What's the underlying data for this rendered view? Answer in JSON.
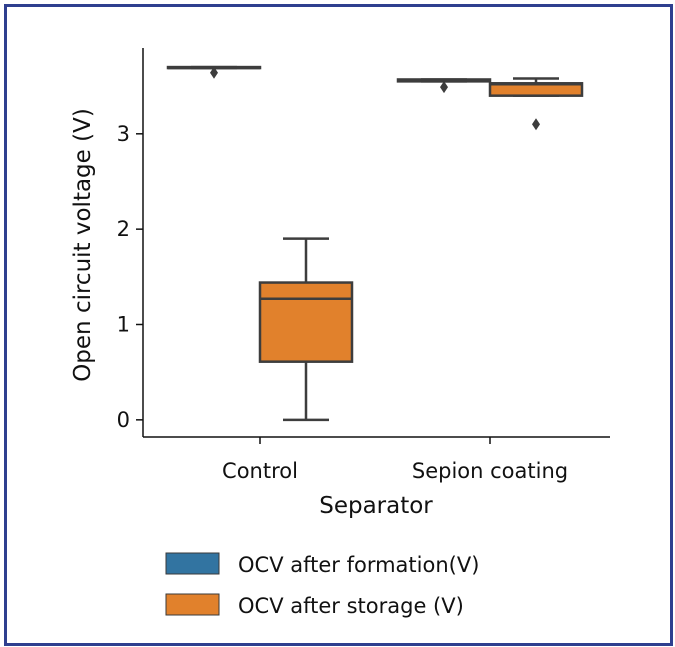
{
  "chart_data": {
    "type": "box",
    "title": "",
    "xlabel": "Separator",
    "ylabel": "Open circuit voltage (V)",
    "categories": [
      "Control",
      "Sepion coating"
    ],
    "ylim": [
      -0.18,
      3.9
    ],
    "yticks": [
      0,
      1,
      2,
      3
    ],
    "grid": false,
    "legend_placement": "bottom",
    "series": [
      {
        "name": "OCV after formation(V)",
        "color": "#3274a1",
        "boxes": [
          {
            "whisker_low": 3.69,
            "q1": 3.69,
            "median": 3.69,
            "q3": 3.7,
            "whisker_high": 3.7,
            "outliers": [
              3.64
            ]
          },
          {
            "whisker_low": 3.55,
            "q1": 3.55,
            "median": 3.56,
            "q3": 3.57,
            "whisker_high": 3.57,
            "outliers": [
              3.49
            ]
          }
        ]
      },
      {
        "name": "OCV after storage (V)",
        "color": "#e1812c",
        "boxes": [
          {
            "whisker_low": 0.0,
            "q1": 0.61,
            "median": 1.27,
            "q3": 1.44,
            "whisker_high": 1.9,
            "outliers": []
          },
          {
            "whisker_low": 3.4,
            "q1": 3.4,
            "median": 3.52,
            "q3": 3.53,
            "whisker_high": 3.58,
            "outliers": [
              3.1
            ]
          }
        ]
      }
    ]
  }
}
